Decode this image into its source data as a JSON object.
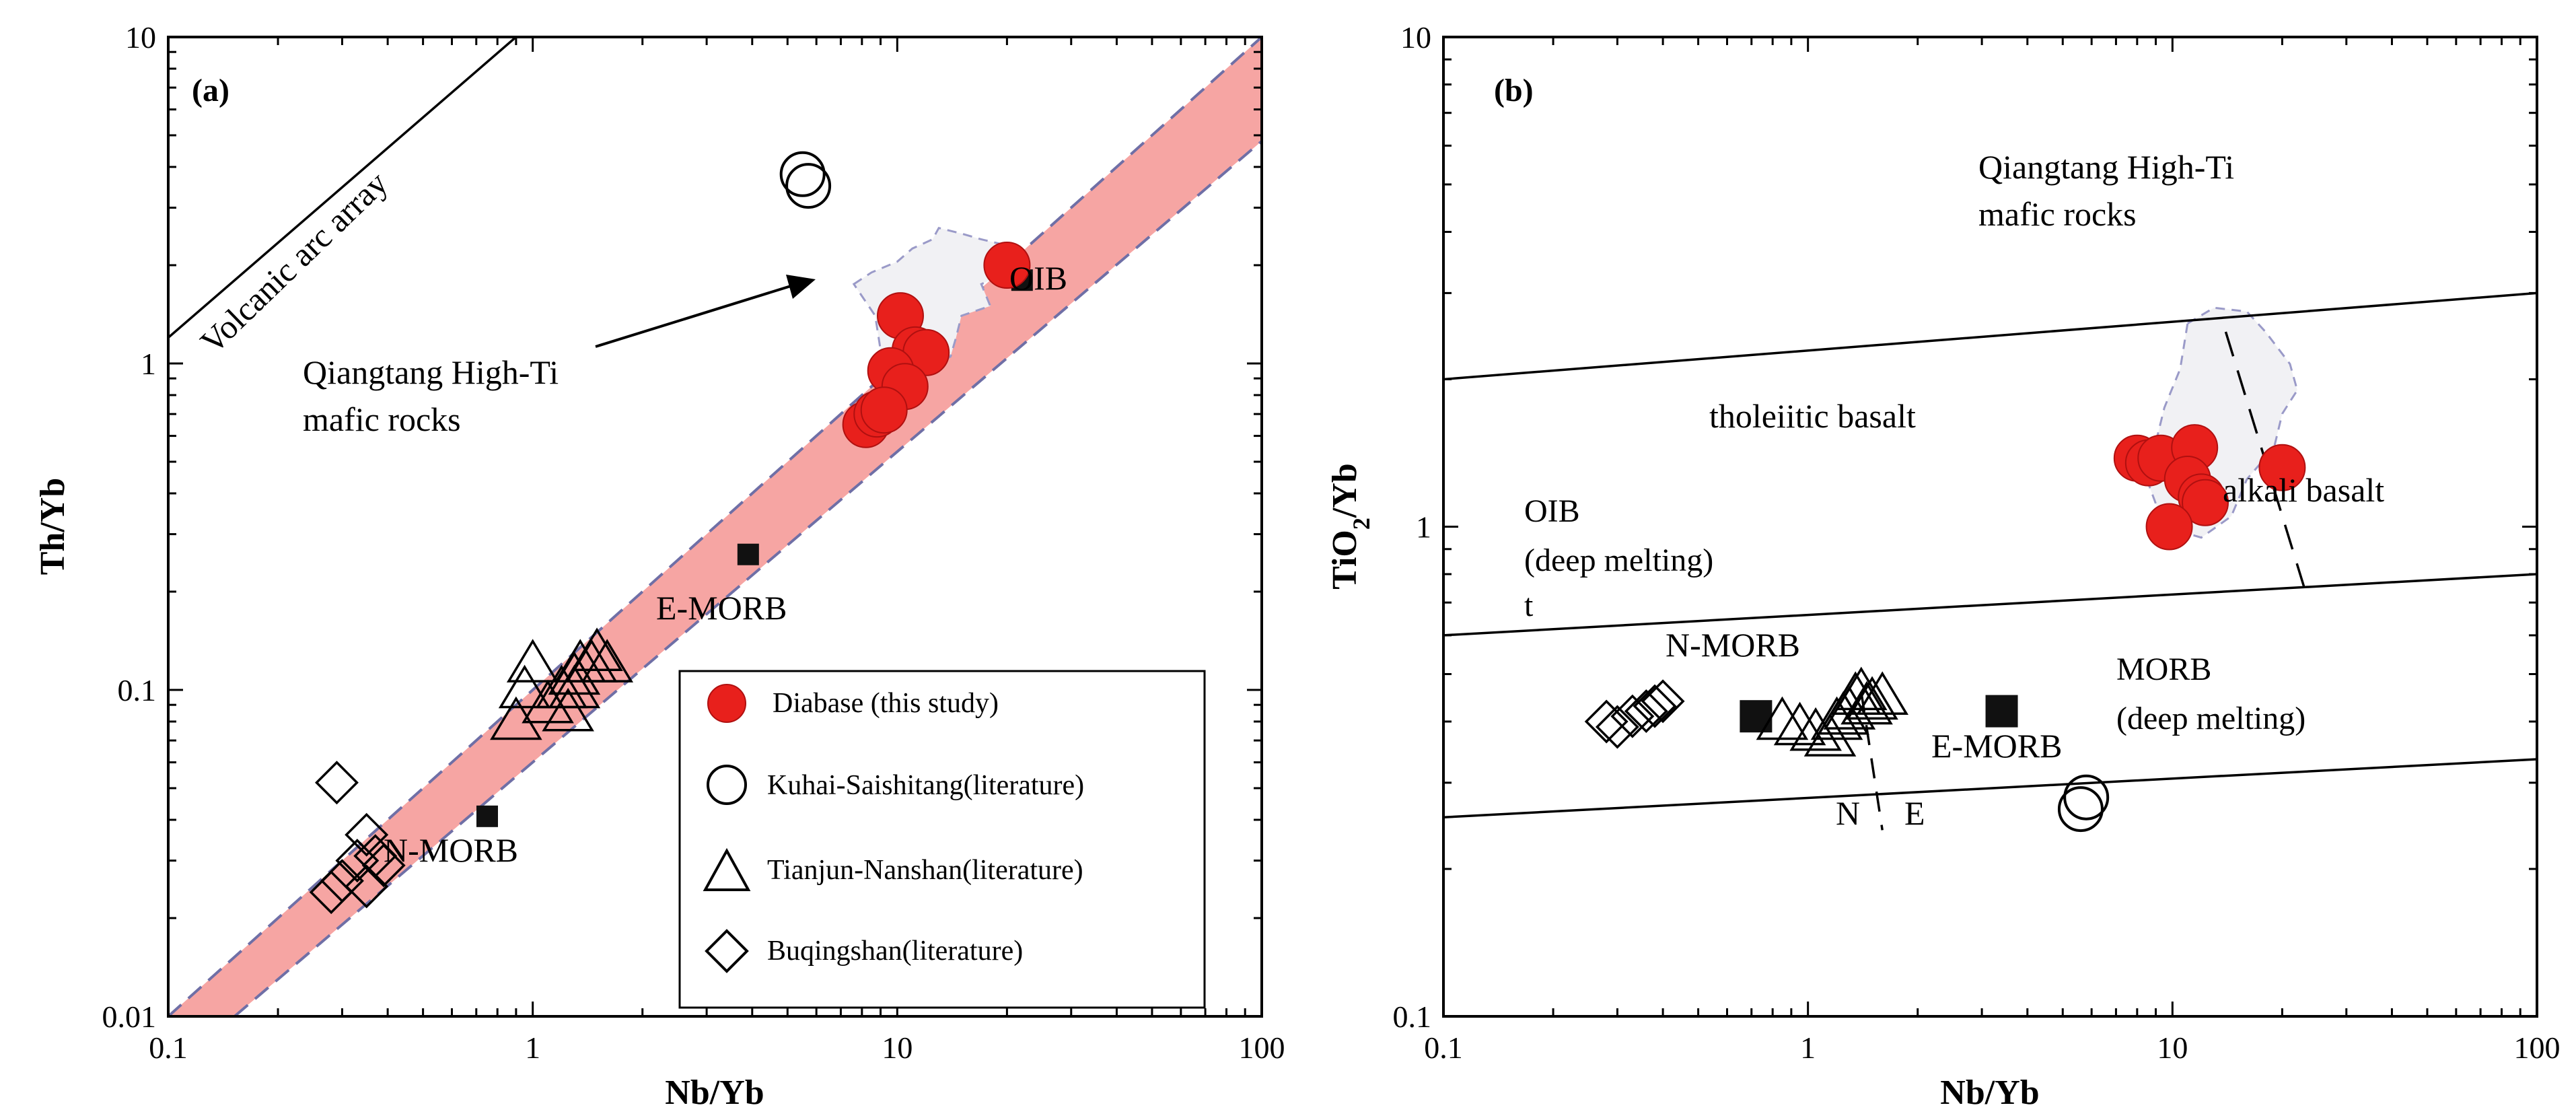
{
  "chart_data": [
    {
      "type": "scatter",
      "panel_label": "(a)",
      "title": "",
      "xlabel": "Nb/Yb",
      "ylabel": "Th/Yb",
      "xscale": "log",
      "yscale": "log",
      "xlim": [
        0.1,
        100
      ],
      "ylim": [
        0.01,
        10
      ],
      "x_tick_labels": [
        "0.1",
        "1",
        "10",
        "100"
      ],
      "y_tick_labels": [
        "0.01",
        "0.1",
        "1",
        "10"
      ],
      "mantle_array": {
        "lower": [
          [
            0.152,
            0.01
          ],
          [
            100,
            4.8
          ]
        ],
        "upper": [
          [
            0.1,
            0.01
          ],
          [
            100,
            10
          ]
        ]
      },
      "volcanic_arc_line": [
        [
          0.1,
          1.2
        ],
        [
          0.9,
          10
        ]
      ],
      "field_qiangtang": [
        [
          7.6,
          1.75
        ],
        [
          8.5,
          1.9
        ],
        [
          10,
          2.05
        ],
        [
          11,
          2.25
        ],
        [
          12.5,
          2.4
        ],
        [
          13,
          2.6
        ],
        [
          15,
          2.5
        ],
        [
          17,
          2.4
        ],
        [
          20,
          2.3
        ],
        [
          22,
          2.2
        ],
        [
          20,
          1.9
        ],
        [
          17,
          1.75
        ],
        [
          18,
          1.5
        ],
        [
          15,
          1.4
        ],
        [
          14.5,
          1.2
        ],
        [
          14,
          1.05
        ],
        [
          12,
          0.95
        ],
        [
          10,
          0.9
        ],
        [
          9,
          1.1
        ],
        [
          8.7,
          1.4
        ],
        [
          7.6,
          1.75
        ]
      ],
      "reference_points": [
        {
          "label": "OIB",
          "x": 22,
          "y": 1.8
        },
        {
          "label": "E-MORB",
          "x": 3.9,
          "y": 0.26
        },
        {
          "label": "N-MORB",
          "x": 0.75,
          "y": 0.041
        }
      ],
      "annotations": {
        "arc": "Volcanic arc array",
        "field_line1": "Qiangtang High-Ti",
        "field_line2": "mafic rocks",
        "oib": "OIB",
        "emorb": "E-MORB",
        "nmorb": "N-MORB"
      },
      "legend": [
        "Diabase (this study)",
        "Kuhai-Saishitang(literature)",
        "Tianjun-Nanshan(literature)",
        "Buqingshan(literature)"
      ],
      "series": [
        {
          "name": "Diabase (this study)",
          "marker": "circle-filled",
          "color": "#e8201c",
          "points": [
            [
              20,
              2.0
            ],
            [
              10.2,
              1.4
            ],
            [
              11.2,
              1.1
            ],
            [
              12,
              1.08
            ],
            [
              9.6,
              0.95
            ],
            [
              10.5,
              0.85
            ],
            [
              8.2,
              0.65
            ],
            [
              8.8,
              0.7
            ],
            [
              9.2,
              0.72
            ]
          ]
        },
        {
          "name": "Kuhai-Saishitang(literature)",
          "marker": "circle-open",
          "points": [
            [
              5.5,
              3.8
            ],
            [
              5.7,
              3.5
            ]
          ]
        },
        {
          "name": "Tianjun-Nanshan(literature)",
          "marker": "triangle-open",
          "points": [
            [
              1.0,
              0.12
            ],
            [
              0.95,
              0.1
            ],
            [
              0.9,
              0.08
            ],
            [
              1.2,
              0.1
            ],
            [
              1.3,
              0.11
            ],
            [
              1.35,
              0.12
            ],
            [
              1.45,
              0.12
            ],
            [
              1.5,
              0.13
            ],
            [
              1.6,
              0.12
            ],
            [
              1.25,
              0.085
            ],
            [
              1.1,
              0.09
            ],
            [
              1.3,
              0.1
            ]
          ]
        },
        {
          "name": "Buqingshan(literature)",
          "marker": "diamond-open",
          "points": [
            [
              0.29,
              0.052
            ],
            [
              0.35,
              0.036
            ],
            [
              0.33,
              0.03
            ],
            [
              0.37,
              0.031
            ],
            [
              0.39,
              0.029
            ],
            [
              0.3,
              0.026
            ],
            [
              0.28,
              0.024
            ],
            [
              0.35,
              0.025
            ]
          ]
        }
      ]
    },
    {
      "type": "scatter",
      "panel_label": "(b)",
      "title": "",
      "xlabel": "Nb/Yb",
      "ylabel_main": "TiO",
      "ylabel_sub": "2",
      "ylabel_tail": "/Yb",
      "xscale": "log",
      "yscale": "log",
      "xlim": [
        0.1,
        100
      ],
      "ylim": [
        0.1,
        10
      ],
      "x_tick_labels": [
        "0.1",
        "1",
        "10",
        "100"
      ],
      "y_tick_labels": [
        "0.1",
        "1",
        "10"
      ],
      "boundary_lines": [
        [
          [
            0.1,
            2.0
          ],
          [
            100,
            3.0
          ]
        ],
        [
          [
            0.1,
            0.6
          ],
          [
            100,
            0.8
          ]
        ],
        [
          [
            0.1,
            0.255
          ],
          [
            100,
            0.335
          ]
        ]
      ],
      "ne_divider": [
        [
          1.4,
          0.46
        ],
        [
          1.6,
          0.24
        ]
      ],
      "tholeiite_alkali_divider": [
        [
          14,
          2.5
        ],
        [
          23,
          0.75
        ]
      ],
      "field_qiangtang": [
        [
          11,
          2.6
        ],
        [
          13,
          2.8
        ],
        [
          16,
          2.75
        ],
        [
          18,
          2.5
        ],
        [
          21,
          2.15
        ],
        [
          22,
          1.9
        ],
        [
          20,
          1.7
        ],
        [
          19,
          1.45
        ],
        [
          16,
          1.25
        ],
        [
          14.5,
          1.05
        ],
        [
          12,
          0.95
        ],
        [
          9.5,
          1.0
        ],
        [
          8.5,
          1.25
        ],
        [
          9.5,
          1.75
        ],
        [
          10.5,
          2.1
        ],
        [
          11,
          2.6
        ]
      ],
      "reference_points": [
        {
          "label": "N-MORB",
          "x": 0.72,
          "y": 0.41
        },
        {
          "label": "E-MORB",
          "x": 3.4,
          "y": 0.42
        }
      ],
      "annotations": {
        "field_line1": "Qiangtang High-Ti",
        "field_line2": "mafic rocks",
        "tholeiitic": "tholeiitic basalt",
        "alkali": "alkali basalt",
        "oib1": "OIB",
        "oib2": "(deep melting)",
        "oib3": "t",
        "morb1": "MORB",
        "morb2": "(deep melting)",
        "nmorb": "N-MORB",
        "emorb": "E-MORB",
        "n": "N",
        "e": "E"
      },
      "series": [
        {
          "name": "Diabase (this study)",
          "marker": "circle-filled",
          "color": "#e8201c",
          "points": [
            [
              20,
              1.32
            ],
            [
              8,
              1.38
            ],
            [
              8.6,
              1.35
            ],
            [
              9.3,
              1.38
            ],
            [
              11.5,
              1.45
            ],
            [
              11,
              1.25
            ],
            [
              12,
              1.15
            ],
            [
              12.3,
              1.12
            ],
            [
              9.8,
              1.0
            ]
          ]
        },
        {
          "name": "Kuhai-Saishitang(literature)",
          "marker": "circle-open",
          "points": [
            [
              5.8,
              0.28
            ],
            [
              5.6,
              0.265
            ]
          ]
        },
        {
          "name": "Tianjun-Nanshan(literature)",
          "marker": "triangle-open",
          "points": [
            [
              0.85,
              0.4
            ],
            [
              0.95,
              0.39
            ],
            [
              1.05,
              0.38
            ],
            [
              1.15,
              0.37
            ],
            [
              1.25,
              0.41
            ],
            [
              1.3,
              0.42
            ],
            [
              1.35,
              0.45
            ],
            [
              1.4,
              0.46
            ],
            [
              1.45,
              0.43
            ],
            [
              1.5,
              0.44
            ],
            [
              1.6,
              0.45
            ],
            [
              1.2,
              0.4
            ]
          ]
        },
        {
          "name": "Buqingshan(literature)",
          "marker": "diamond-open",
          "points": [
            [
              0.28,
              0.4
            ],
            [
              0.3,
              0.39
            ],
            [
              0.33,
              0.41
            ],
            [
              0.36,
              0.42
            ],
            [
              0.38,
              0.43
            ],
            [
              0.4,
              0.44
            ]
          ]
        }
      ]
    }
  ]
}
